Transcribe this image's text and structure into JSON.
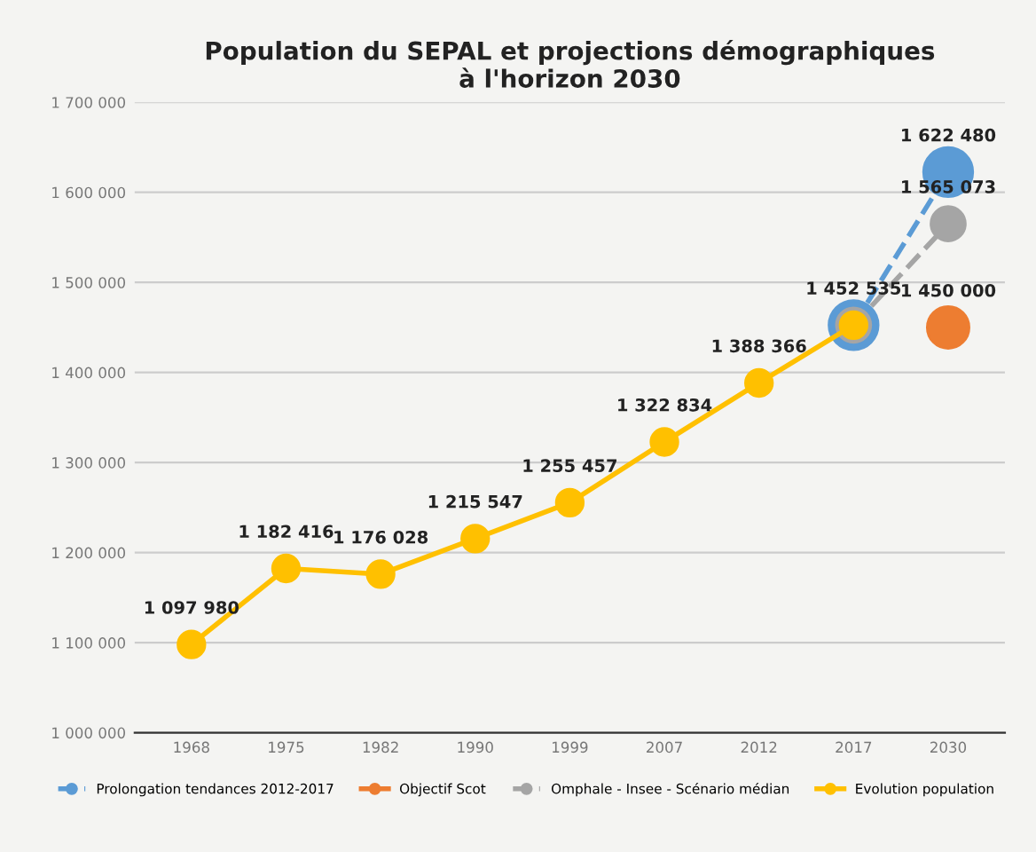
{
  "chart_data": {
    "type": "line",
    "title": "Population du SEPAL et projections démographiques\nà l'horizon 2030",
    "categories": [
      "1968",
      "1975",
      "1982",
      "1990",
      "1999",
      "2007",
      "2012",
      "2017",
      "2030"
    ],
    "series": [
      {
        "name": "Prolongation tendances 2012-2017",
        "color": "#5b9bd5",
        "line_style": "dashed",
        "values": [
          null,
          null,
          null,
          null,
          null,
          null,
          null,
          1452535,
          1622480
        ],
        "value_labels": [
          null,
          null,
          null,
          null,
          null,
          null,
          null,
          null,
          "1 622 480"
        ]
      },
      {
        "name": "Objectif Scot",
        "color": "#ed7d31",
        "line_style": "solid",
        "values": [
          null,
          null,
          null,
          null,
          null,
          null,
          null,
          null,
          1450000
        ],
        "value_labels": [
          null,
          null,
          null,
          null,
          null,
          null,
          null,
          null,
          "1 450 000"
        ]
      },
      {
        "name": "Omphale - Insee - Scénario médian",
        "color": "#a5a5a5",
        "line_style": "dashed",
        "values": [
          null,
          null,
          null,
          null,
          null,
          null,
          null,
          1452535,
          1565073
        ],
        "value_labels": [
          null,
          null,
          null,
          null,
          null,
          null,
          null,
          null,
          "1 565 073"
        ]
      },
      {
        "name": "Evolution population",
        "color": "#ffc000",
        "line_style": "solid",
        "values": [
          1097980,
          1182416,
          1176028,
          1215547,
          1255457,
          1322834,
          1388366,
          1452535,
          null
        ],
        "value_labels": [
          "1 097 980",
          "1 182 416",
          "1 176 028",
          "1 215 547",
          "1 255 457",
          "1 322 834",
          "1 388 366",
          "1 452 535",
          null
        ]
      }
    ],
    "ylim": [
      1000000,
      1700000
    ],
    "yticks": [
      {
        "value": 1000000,
        "label": "1 000 000"
      },
      {
        "value": 1100000,
        "label": "1 100 000"
      },
      {
        "value": 1200000,
        "label": "1 200 000"
      },
      {
        "value": 1300000,
        "label": "1 300 000"
      },
      {
        "value": 1400000,
        "label": "1 400 000"
      },
      {
        "value": 1500000,
        "label": "1 500 000"
      },
      {
        "value": 1600000,
        "label": "1 600 000"
      },
      {
        "value": 1700000,
        "label": "1 700 000"
      }
    ],
    "grid": "y",
    "legend": "bottom",
    "marker": "circle"
  }
}
